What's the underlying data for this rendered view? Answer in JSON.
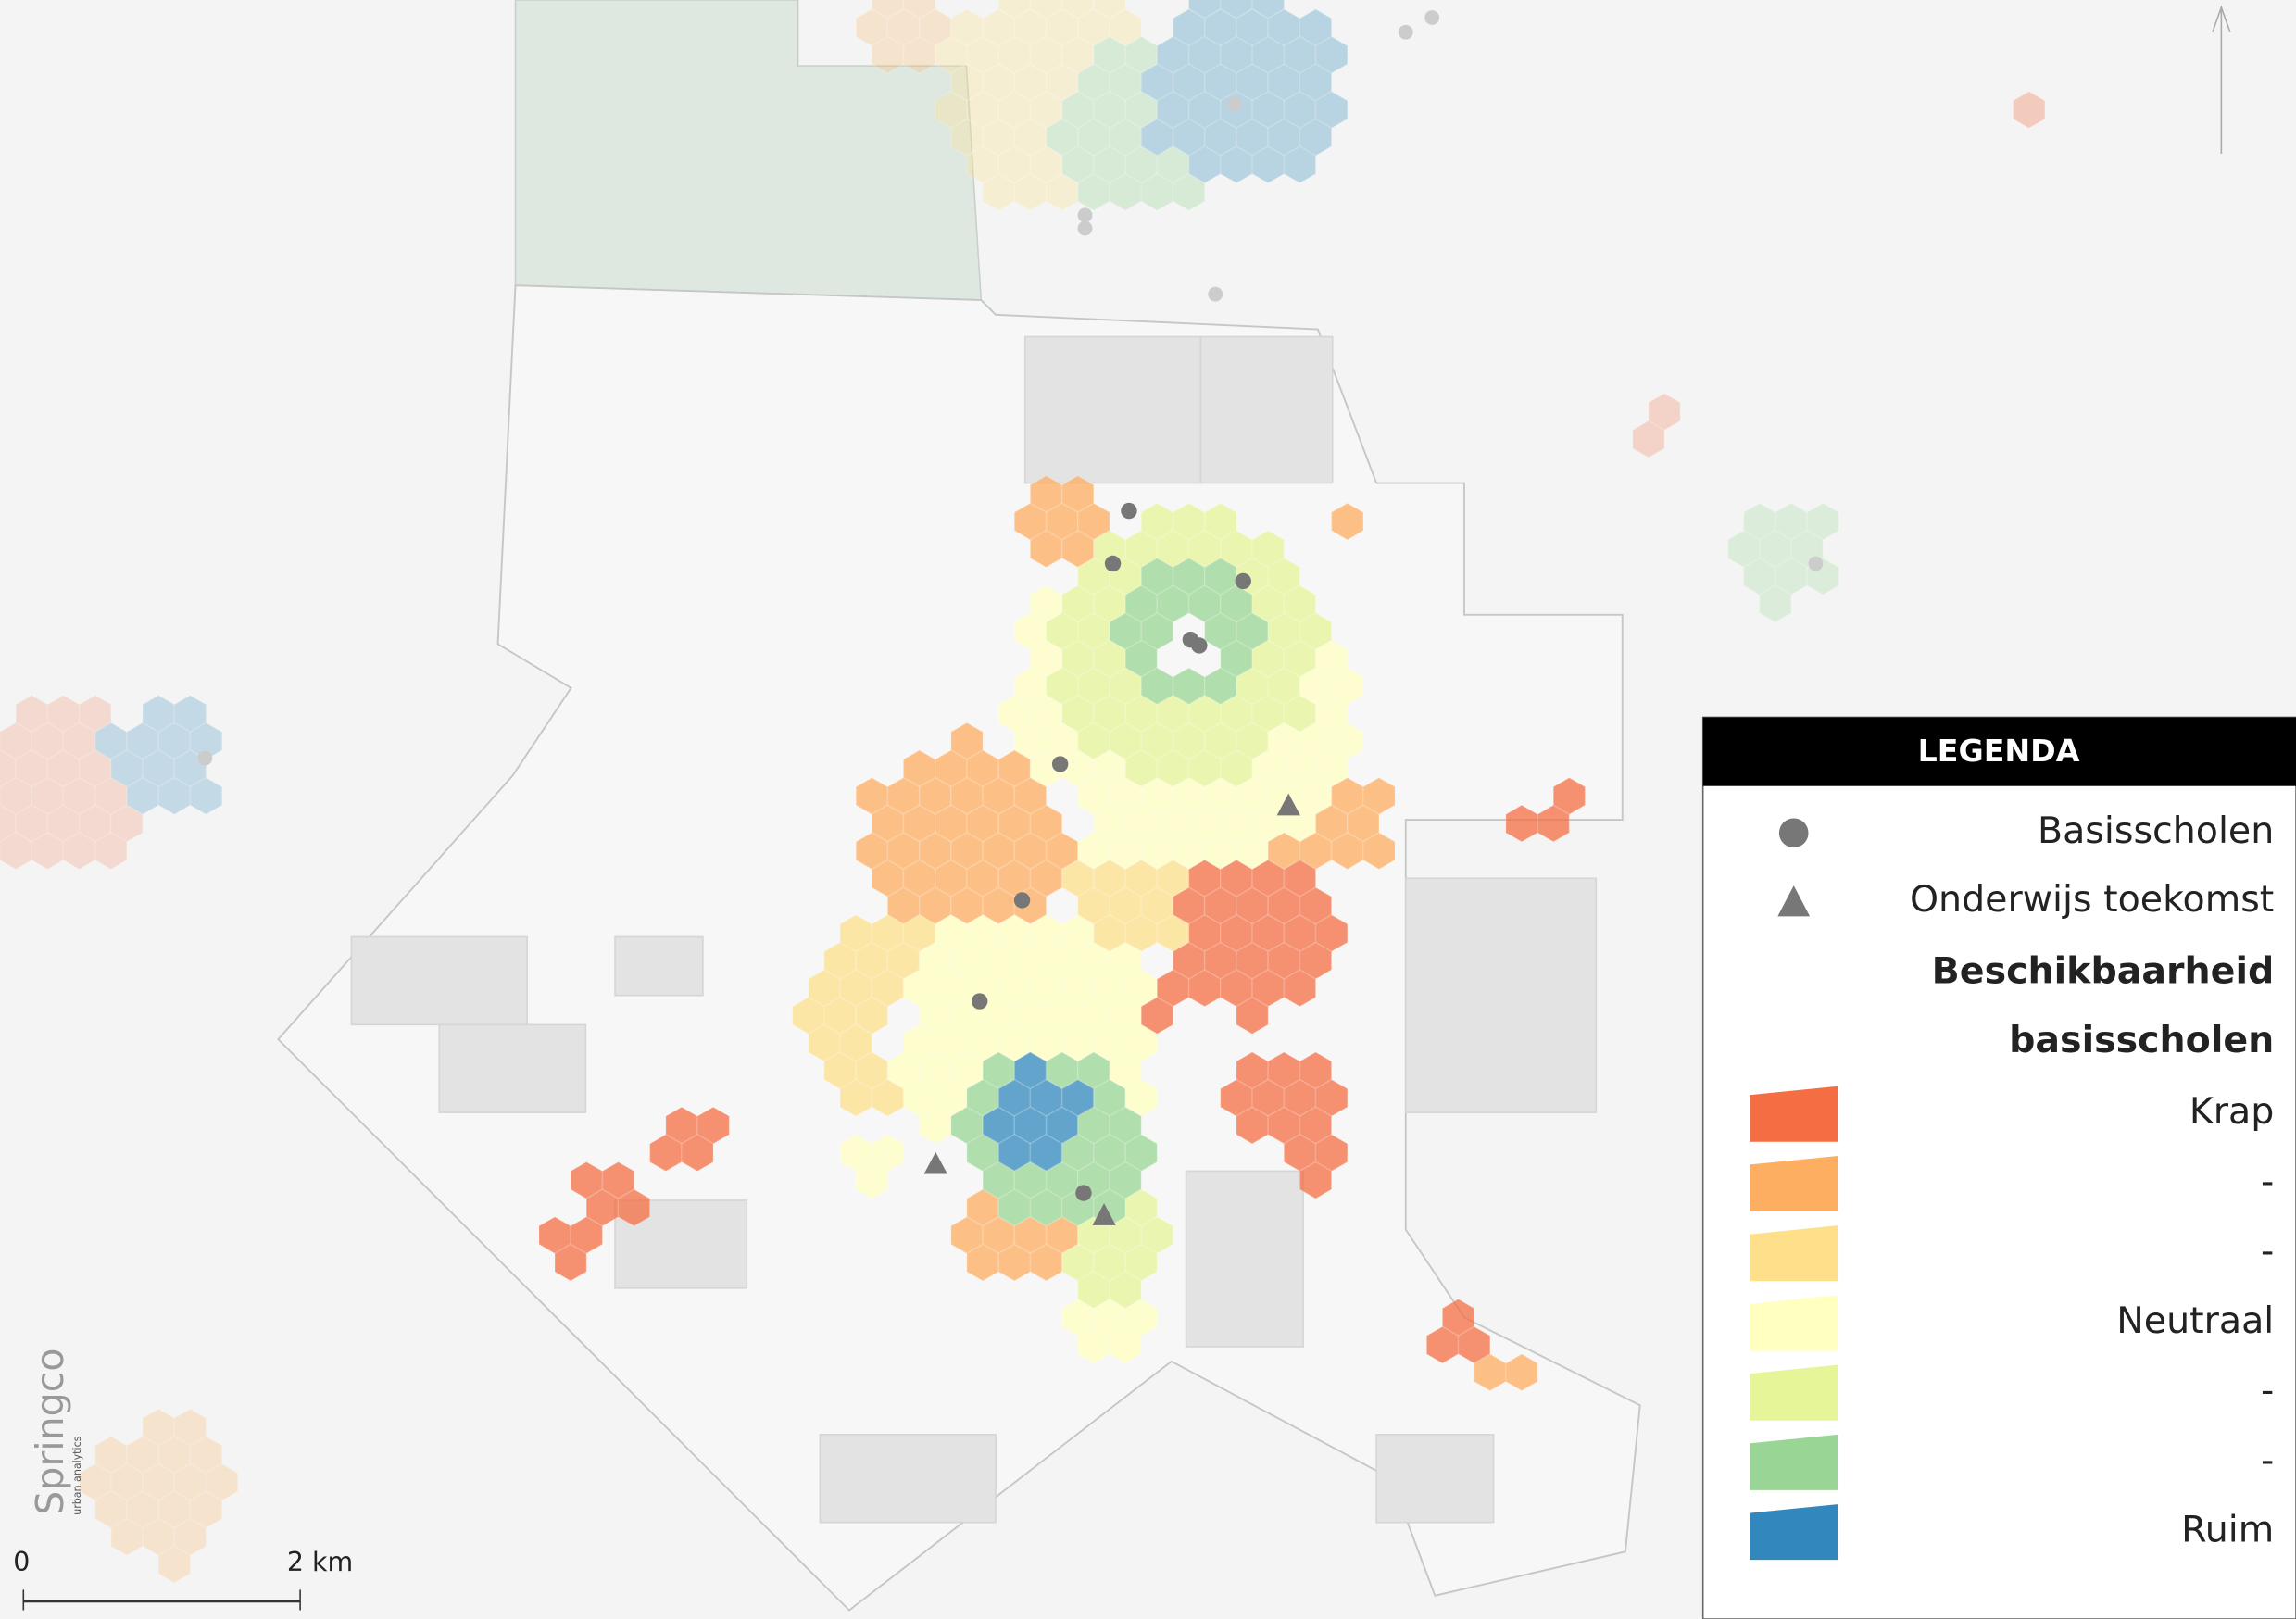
{
  "legend": {
    "title": "LEGENDA",
    "symbols": [
      {
        "label": "Basisscholen",
        "shape": "circle"
      },
      {
        "label": "Onderwijs toekomst",
        "shape": "triangle"
      }
    ],
    "heading": [
      "Beschikbaarheid",
      "basisscholen"
    ],
    "classes": [
      {
        "label": "Krap",
        "color": "#f46d43"
      },
      {
        "label": "-",
        "color": "#fdae61"
      },
      {
        "label": "-",
        "color": "#fee08b"
      },
      {
        "label": "Neutraal",
        "color": "#ffffbf"
      },
      {
        "label": "-",
        "color": "#e6f598"
      },
      {
        "label": "-",
        "color": "#99d594"
      },
      {
        "label": "Ruim",
        "color": "#3288bd"
      }
    ]
  },
  "scale_bar": {
    "start": "0",
    "end": "2 km"
  },
  "logo": {
    "name": "Springco",
    "tagline": "urban analytics"
  }
}
